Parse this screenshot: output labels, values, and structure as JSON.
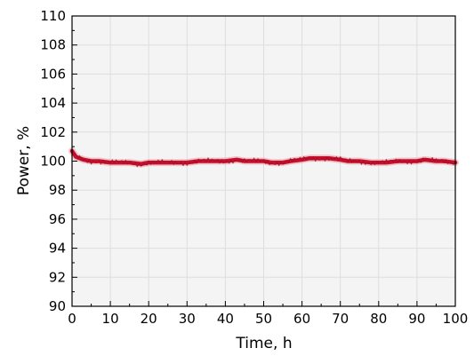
{
  "chart_data": {
    "type": "line",
    "xlabel": "Time, h",
    "ylabel": "Power, %",
    "xlim": [
      0,
      100
    ],
    "ylim": [
      90,
      110
    ],
    "xticks": [
      0,
      10,
      20,
      30,
      40,
      50,
      60,
      70,
      80,
      90,
      100
    ],
    "yticks": [
      90,
      92,
      94,
      96,
      98,
      100,
      102,
      104,
      106,
      108,
      110
    ],
    "grid": true,
    "series": [
      {
        "color": "#c8102e",
        "x": [
          0,
          1,
          2,
          3,
          5,
          7,
          10,
          12,
          15,
          18,
          20,
          22,
          25,
          28,
          30,
          33,
          35,
          38,
          40,
          43,
          45,
          48,
          50,
          52,
          55,
          57,
          60,
          62,
          65,
          67,
          70,
          72,
          75,
          78,
          80,
          82,
          85,
          88,
          90,
          92,
          95,
          97,
          100
        ],
        "y": [
          100.7,
          100.3,
          100.2,
          100.1,
          100.0,
          100.0,
          99.9,
          99.9,
          99.9,
          99.8,
          99.9,
          99.9,
          99.9,
          99.9,
          99.9,
          100.0,
          100.0,
          100.0,
          100.0,
          100.1,
          100.0,
          100.0,
          100.0,
          99.9,
          99.9,
          100.0,
          100.1,
          100.2,
          100.2,
          100.2,
          100.1,
          100.0,
          100.0,
          99.9,
          99.9,
          99.9,
          100.0,
          100.0,
          100.0,
          100.1,
          100.0,
          100.0,
          99.9
        ]
      }
    ]
  }
}
